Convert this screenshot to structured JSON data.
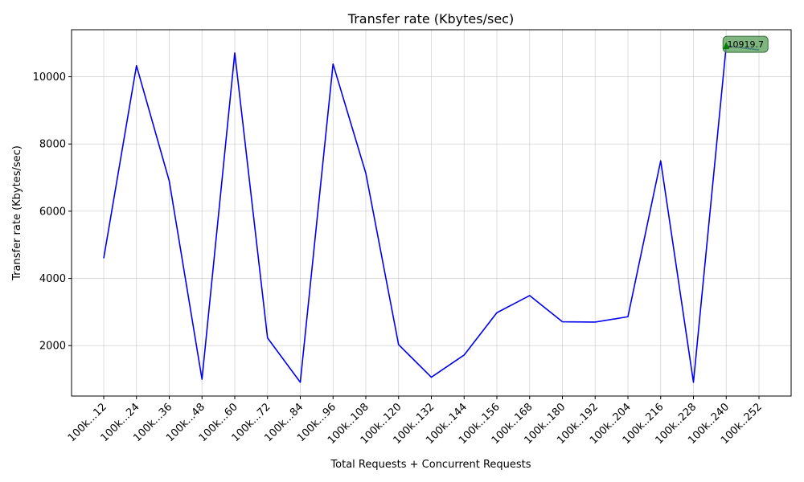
{
  "chart_data": {
    "type": "line",
    "title": "Transfer rate (Kbytes/sec)",
    "xlabel": "Total Requests + Concurrent Requests",
    "ylabel": "Transfer rate (Kbytes/sec)",
    "categories": [
      "100k...12",
      "100k...24",
      "100k...36",
      "100k...48",
      "100k...60",
      "100k...72",
      "100k...84",
      "100k...96",
      "100k..108",
      "100k..120",
      "100k..132",
      "100k..144",
      "100k..156",
      "100k..168",
      "100k..180",
      "100k..192",
      "100k..204",
      "100k..216",
      "100k..228",
      "100k..240",
      "100k..252"
    ],
    "series": [
      {
        "values": [
          4600,
          10330,
          6900,
          1000,
          10710,
          2230,
          910,
          10380,
          7130,
          2030,
          1060,
          1720,
          2980,
          3490,
          2710,
          2700,
          2860,
          7500,
          910,
          10919.7,
          10800
        ],
        "color": "#0000ee"
      }
    ],
    "ylim": [
      500,
      11400
    ],
    "yticks": [
      2000,
      4000,
      6000,
      8000,
      10000
    ],
    "ytick_labels": [
      "2000",
      "4000",
      "6000",
      "8000",
      "10000"
    ],
    "grid": true,
    "annotation": {
      "text": "10919.7",
      "category_index": 19,
      "value": 10919.7,
      "box_color": "#5fa35f",
      "arrow_color": "#008000"
    }
  }
}
